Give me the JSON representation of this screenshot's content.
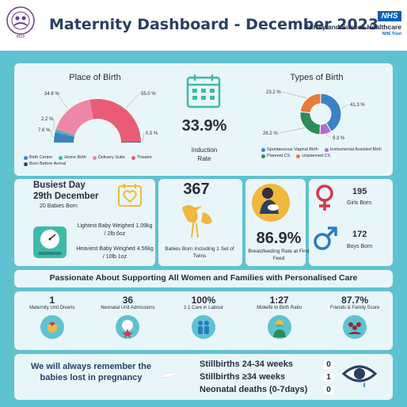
{
  "header": {
    "title": "Maternity Dashboard - December 2023",
    "nhs_badge": "NHS",
    "trust_name": "Surrey and Sussex Healthcare",
    "trust_sub": "NHS Trust",
    "logo_text": "SURREY & SUSSEX HEALTHCARE MVP"
  },
  "colors": {
    "teal_bg": "#5fc2d1",
    "card_bg": "#e9f6f9",
    "navy": "#2a3f66",
    "nhs_blue": "#005eb8",
    "girl_red": "#d9344a",
    "boy_blue": "#2b7bbd"
  },
  "chart_data": [
    {
      "type": "pie",
      "title": "Place of Birth",
      "categories": [
        "Birth Centre",
        "Home Birth",
        "Delivery Suite",
        "Theatre",
        "Born Before Arrival"
      ],
      "values": [
        7.6,
        2.2,
        34.6,
        55.0,
        0.5
      ],
      "labels": [
        "7.6 %",
        "2.2 %",
        "34.6 %",
        "55.0 %",
        "0.5 %"
      ],
      "colors": [
        "#3b82c4",
        "#3fb9a8",
        "#ef86a8",
        "#e85d75",
        "#2f4f4f"
      ],
      "legend": "bottom"
    },
    {
      "type": "pie",
      "title": "Types of Birth",
      "categories": [
        "Spontaneous Vaginal Birth",
        "Instrumental Assisted Birth",
        "Planned CS",
        "Unplanned CS"
      ],
      "values": [
        41.3,
        9.3,
        26.2,
        23.2
      ],
      "labels": [
        "41.3 %",
        "9.3 %",
        "26.2 %",
        "23.2 %"
      ],
      "colors": [
        "#3b82c4",
        "#b06fd0",
        "#2e8b57",
        "#e87a3c"
      ],
      "legend": "bottom"
    }
  ],
  "induction": {
    "value": "33.9%",
    "label": "Induction Rate"
  },
  "busiest": {
    "title": "Busiest Day",
    "date": "29th December",
    "babies": "20 Babies Born"
  },
  "weights": {
    "lightest": "Lightest Baby Weighed 1.09kg / 2lb 6oz",
    "heaviest": "Heaviest Baby Weighed 4.56kg / 10lb 1oz"
  },
  "babies": {
    "value": "367",
    "label": "Babies Born Including 1 Set of Twins"
  },
  "breastfeeding": {
    "value": "86.9%",
    "label": "Breastfeeding Rate at First Feed"
  },
  "girls": {
    "value": "195",
    "label": "Girls Born"
  },
  "boys": {
    "value": "172",
    "label": "Boys Born"
  },
  "banner": "Passionate About Supporting All Women and Families with Personalised Care",
  "stats": [
    {
      "value": "1",
      "label": "Maternity Unit Diverts",
      "icon": "hand-heart-icon"
    },
    {
      "value": "36",
      "label": "Neonatal Unit Admissions",
      "icon": "baby-star-icon"
    },
    {
      "value": "100%",
      "label": "1:1 Care in Labour",
      "icon": "people-icon"
    },
    {
      "value": "1:27",
      "label": "Midwife to Birth Ratio",
      "icon": "midwife-icon"
    },
    {
      "value": "87.7%",
      "label": "Friends & Family Score",
      "icon": "group-icon"
    }
  ],
  "remember": "We will always remember the babies lost in pregnancy",
  "losses": [
    {
      "label": "Stillbirths 24-34 weeks",
      "value": "0"
    },
    {
      "label": "Stillbirths ≥34 weeks",
      "value": "1"
    },
    {
      "label": "Neonatal deaths (0-7days)",
      "value": "0"
    }
  ]
}
